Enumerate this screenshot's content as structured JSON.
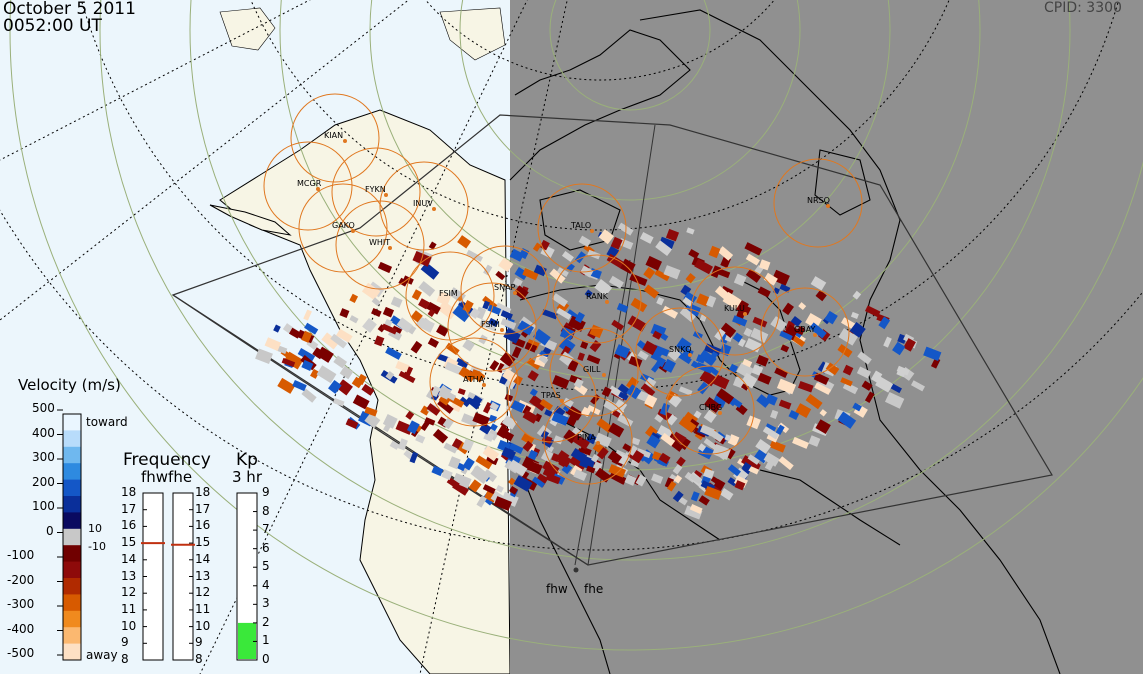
{
  "header": {
    "date": "October  5 2011",
    "time": "0052:00 UT",
    "cpid_label": "CPID:",
    "cpid_value": "3300"
  },
  "stations": [
    "KIAN",
    "MCGR",
    "FYKN",
    "GAKO",
    "INUV",
    "WHIT",
    "FSIM",
    "SNAP",
    "FSMI",
    "TALO",
    "RANK",
    "KULU",
    "GBAY",
    "NRSQ",
    "SNKQ",
    "ATHA",
    "GILL",
    "TPAS",
    "PINA",
    "CHBG"
  ],
  "beams": {
    "left": "fhw",
    "right": "fhe"
  },
  "velocity": {
    "title": "Velocity (m/s)",
    "toward_label": "toward",
    "away_label": "away",
    "ticks": [
      "500",
      "400",
      "300",
      "200",
      "100",
      "0",
      "-100",
      "-200",
      "-300",
      "-400",
      "-500"
    ],
    "threshold_pos": "10",
    "threshold_neg": "-10",
    "colors": [
      "#eaf6ff",
      "#b8dcfb",
      "#6fb8ef",
      "#2e8ae0",
      "#1457c7",
      "#0a2f9a",
      "#0a0a60",
      "#c8c8c8",
      "#700000",
      "#8e0a0a",
      "#b02a00",
      "#d75a00",
      "#f08a1e",
      "#fbb870",
      "#fde0c4"
    ]
  },
  "frequency": {
    "title": "Frequency",
    "subtitle": "fhwfhe",
    "ticks": [
      "18",
      "17",
      "16",
      "15",
      "14",
      "13",
      "12",
      "11",
      "10",
      "9",
      "8"
    ],
    "fhw_value": 15.0,
    "fhe_value": 14.9
  },
  "kp": {
    "title": "Kp",
    "subtitle": "3 hr",
    "ticks": [
      "9",
      "8",
      "7",
      "6",
      "5",
      "4",
      "3",
      "2",
      "1",
      "0"
    ],
    "value": 2
  }
}
